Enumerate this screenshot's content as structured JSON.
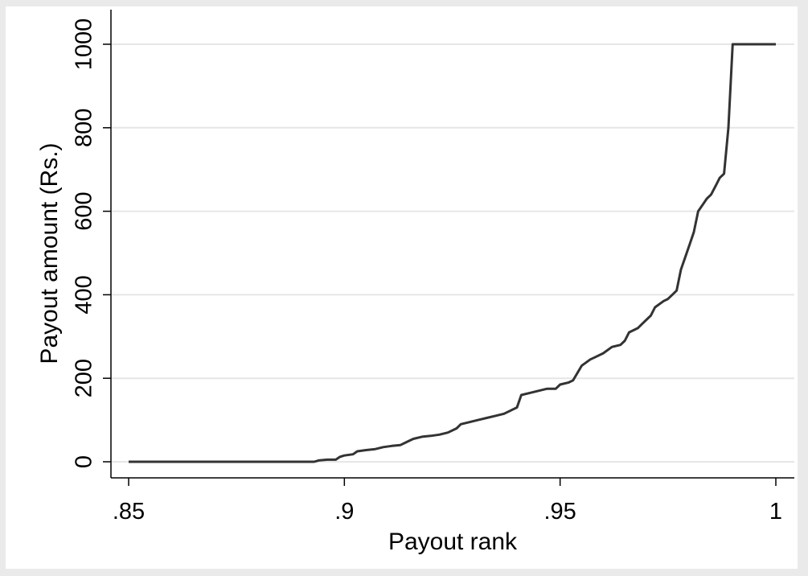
{
  "chart_data": {
    "type": "line",
    "title": "",
    "xlabel": "Payout rank",
    "ylabel": "Payout amount (Rs.)",
    "xlim": [
      0.85,
      1.0
    ],
    "ylim": [
      0,
      1000
    ],
    "x_ticks": [
      {
        "value": 0.85,
        "label": ".85"
      },
      {
        "value": 0.9,
        "label": ".9"
      },
      {
        "value": 0.95,
        "label": ".95"
      },
      {
        "value": 1.0,
        "label": "1"
      }
    ],
    "y_ticks": [
      {
        "value": 0,
        "label": "0"
      },
      {
        "value": 200,
        "label": "200"
      },
      {
        "value": 400,
        "label": "400"
      },
      {
        "value": 600,
        "label": "600"
      },
      {
        "value": 800,
        "label": "800"
      },
      {
        "value": 1000,
        "label": "1000"
      }
    ],
    "grid": true,
    "colors": {
      "background": "#eaeaea",
      "plot": "#ffffff",
      "line": "#333333",
      "grid": "#e6e6e6"
    },
    "series": [
      {
        "x": [
          0.85,
          0.893,
          0.894,
          0.896,
          0.898,
          0.899,
          0.9,
          0.902,
          0.903,
          0.905,
          0.907,
          0.909,
          0.911,
          0.913,
          0.915,
          0.916,
          0.918,
          0.92,
          0.922,
          0.924,
          0.926,
          0.927,
          0.929,
          0.931,
          0.933,
          0.935,
          0.937,
          0.938,
          0.94,
          0.941,
          0.943,
          0.945,
          0.947,
          0.949,
          0.95,
          0.952,
          0.953,
          0.955,
          0.957,
          0.958,
          0.96,
          0.962,
          0.964,
          0.965,
          0.966,
          0.968,
          0.969,
          0.97,
          0.971,
          0.972,
          0.974,
          0.975,
          0.976,
          0.977,
          0.978,
          0.979,
          0.98,
          0.981,
          0.982,
          0.983,
          0.984,
          0.985,
          0.986,
          0.987,
          0.988,
          0.989,
          0.99,
          0.991,
          0.992,
          1.0
        ],
        "y": [
          0,
          0,
          3,
          5,
          5,
          12,
          15,
          18,
          25,
          28,
          30,
          35,
          38,
          40,
          50,
          55,
          60,
          62,
          65,
          70,
          80,
          90,
          95,
          100,
          105,
          110,
          115,
          120,
          130,
          160,
          165,
          170,
          175,
          175,
          185,
          190,
          195,
          230,
          245,
          250,
          260,
          275,
          280,
          290,
          310,
          320,
          330,
          340,
          350,
          370,
          385,
          390,
          400,
          410,
          460,
          490,
          520,
          550,
          600,
          615,
          630,
          640,
          660,
          680,
          690,
          800,
          1000,
          1000,
          1000,
          1000
        ]
      }
    ]
  }
}
